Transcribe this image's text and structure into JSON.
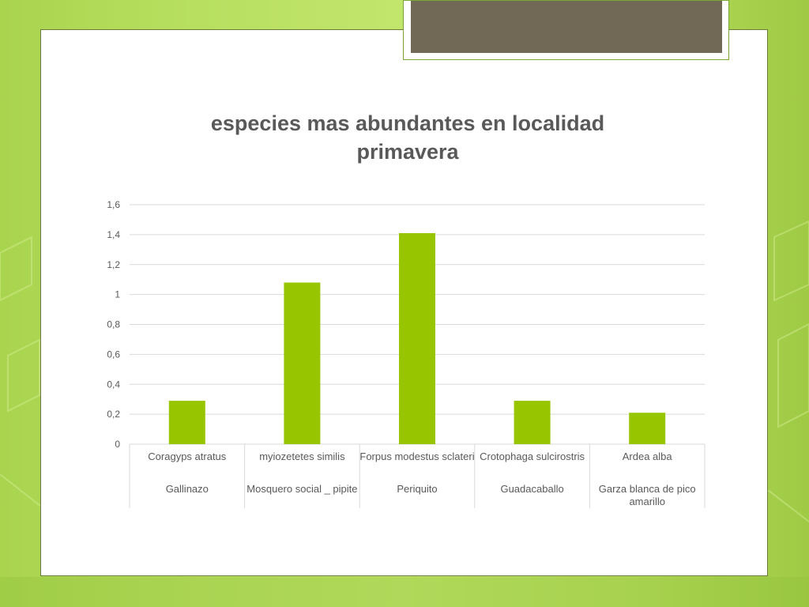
{
  "colors": {
    "bar": "#97c600",
    "slide_background": "#ffffff",
    "title_box_fill": "#716856",
    "page_background": "#b6de5e"
  },
  "chart_data": {
    "type": "bar",
    "title": "especies mas abundantes en localidad primavera",
    "title_lines": [
      "especies mas abundantes en localidad",
      "primavera"
    ],
    "categories": [
      {
        "scientific": "Coragyps atratus",
        "common": "Gallinazo"
      },
      {
        "scientific": "myiozetetes similis",
        "common": "Mosquero social _ pipite"
      },
      {
        "scientific": "Forpus modestus sclateri",
        "common": "Periquito"
      },
      {
        "scientific": "Crotophaga sulcirostris",
        "common": "Guadacaballo"
      },
      {
        "scientific": "Ardea alba",
        "common": "Garza blanca de pico amarillo"
      }
    ],
    "values": [
      0.29,
      1.08,
      1.41,
      0.29,
      0.21
    ],
    "yticks": [
      "0",
      "0,2",
      "0,4",
      "0,6",
      "0,8",
      "1",
      "1,2",
      "1,4",
      "1,6"
    ],
    "ylim": [
      0,
      1.6
    ],
    "grid": true,
    "legend": "none"
  }
}
